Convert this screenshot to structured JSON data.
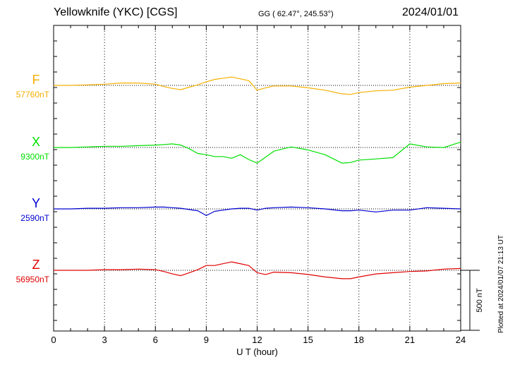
{
  "header": {
    "station": "Yellowknife (YKC)  [CGS]",
    "coords": "GG ( 62.47°, 245.53°)",
    "date": "2024/01/01"
  },
  "footer": {
    "plotted": "Plotted at 2024/01/07 21:13 UT"
  },
  "scale_bar_label": "500 nT",
  "colors": {
    "F": "#f5b000",
    "X": "#00e000",
    "Y": "#0000d0",
    "Z": "#e00000",
    "axis": "#000000",
    "grid": "#000000"
  },
  "chart_data": {
    "type": "line",
    "title": "",
    "xlabel": "U T (hour)",
    "ylabel": "",
    "xlim": [
      0,
      24
    ],
    "xticks": [
      0,
      3,
      6,
      9,
      12,
      15,
      18,
      21,
      24
    ],
    "grid": true,
    "units": "nT",
    "scale_bar_nT": 500,
    "series": [
      {
        "name": "F",
        "baseline_label": "57760nT",
        "baseline": 57760,
        "color": "#f5b000",
        "x": [
          0,
          1,
          2,
          3,
          4,
          5,
          6,
          6.5,
          7,
          7.5,
          8,
          8.5,
          9,
          9.5,
          10,
          10.5,
          11,
          11.5,
          12,
          12.5,
          13,
          14,
          15,
          16,
          17,
          17.5,
          18,
          19,
          20,
          21,
          22,
          23,
          24
        ],
        "y": [
          57760,
          57760,
          57765,
          57770,
          57780,
          57780,
          57770,
          57750,
          57735,
          57725,
          57745,
          57765,
          57790,
          57810,
          57820,
          57830,
          57815,
          57800,
          57720,
          57740,
          57755,
          57755,
          57740,
          57720,
          57690,
          57685,
          57700,
          57715,
          57720,
          57745,
          57760,
          57775,
          57780
        ]
      },
      {
        "name": "X",
        "baseline_label": "9300nT",
        "baseline": 9300,
        "color": "#00e000",
        "x": [
          0,
          1,
          2,
          3,
          4,
          5,
          6,
          6.5,
          7,
          7.5,
          8,
          8.5,
          9,
          9.5,
          10,
          10.5,
          11,
          11.5,
          12,
          12.5,
          13,
          14,
          15,
          16,
          17,
          17.5,
          18,
          19,
          20,
          21,
          22,
          23,
          24
        ],
        "y": [
          9300,
          9300,
          9305,
          9310,
          9310,
          9315,
          9320,
          9325,
          9330,
          9320,
          9290,
          9250,
          9240,
          9225,
          9225,
          9210,
          9240,
          9200,
          9170,
          9220,
          9270,
          9305,
          9280,
          9240,
          9170,
          9175,
          9195,
          9205,
          9215,
          9330,
          9305,
          9300,
          9345
        ]
      },
      {
        "name": "Y",
        "baseline_label": "2590nT",
        "baseline": 2590,
        "color": "#0000d0",
        "x": [
          0,
          1,
          2,
          3,
          4,
          5,
          6,
          6.5,
          7,
          7.5,
          8,
          8.5,
          9,
          9.5,
          10,
          10.5,
          11,
          11.5,
          12,
          12.5,
          13,
          14,
          15,
          16,
          17,
          17.5,
          18,
          19,
          20,
          21,
          22,
          23,
          24
        ],
        "y": [
          2590,
          2590,
          2595,
          2595,
          2600,
          2600,
          2605,
          2605,
          2600,
          2595,
          2585,
          2575,
          2535,
          2570,
          2580,
          2590,
          2595,
          2595,
          2580,
          2595,
          2600,
          2605,
          2600,
          2590,
          2575,
          2575,
          2580,
          2565,
          2580,
          2580,
          2600,
          2595,
          2590
        ]
      },
      {
        "name": "Z",
        "baseline_label": "56950nT",
        "baseline": 56950,
        "color": "#e00000",
        "x": [
          0,
          1,
          2,
          3,
          4,
          5,
          6,
          6.5,
          7,
          7.5,
          8,
          8.5,
          9,
          9.5,
          10,
          10.5,
          11,
          11.5,
          12,
          12.5,
          13,
          14,
          15,
          16,
          17,
          17.5,
          18,
          19,
          20,
          21,
          22,
          23,
          24
        ],
        "y": [
          56950,
          56950,
          56950,
          56955,
          56955,
          56960,
          56955,
          56940,
          56920,
          56905,
          56930,
          56955,
          56990,
          56990,
          57005,
          57020,
          57005,
          56990,
          56930,
          56915,
          56935,
          56930,
          56915,
          56895,
          56880,
          56880,
          56895,
          56920,
          56930,
          56940,
          56945,
          56960,
          56965
        ]
      }
    ]
  }
}
